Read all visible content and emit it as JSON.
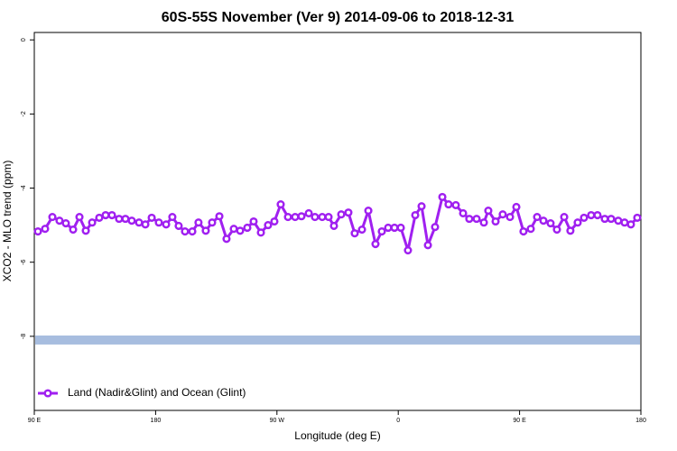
{
  "chart_data": {
    "type": "line",
    "title": "60S-55S November (Ver 9)   2014-09-06 to 2018-12-31",
    "x_label": "Longitude (deg E)",
    "y_label": "XCO2 - MLO trend (ppm)",
    "xlim": [
      90,
      540
    ],
    "ylim": [
      -10,
      0.2
    ],
    "xticks": [
      {
        "value": 90,
        "label": "90 E"
      },
      180,
      {
        "value": 270,
        "label": "90 W"
      },
      {
        "value": 360,
        "label": "0"
      },
      {
        "value": 450,
        "label": "90 E"
      },
      {
        "value": 540,
        "label": "180"
      }
    ],
    "yticks": [
      0,
      -2,
      -4,
      -6,
      -8
    ],
    "legend_position": "bottomleft",
    "reference_band": {
      "value": -8.1,
      "color": "#a7bddf"
    },
    "x": [
      92.7,
      98.0,
      103.4,
      108.7,
      113.4,
      118.8,
      123.5,
      128.2,
      132.9,
      138.2,
      142.9,
      147.6,
      152.9,
      157.6,
      162.3,
      167.7,
      172.4,
      177.1,
      182.4,
      187.8,
      192.4,
      197.1,
      201.8,
      207.2,
      211.8,
      217.2,
      221.9,
      227.3,
      232.6,
      238.0,
      242.7,
      248.0,
      252.7,
      258.1,
      263.4,
      268.1,
      272.8,
      278.2,
      283.5,
      288.2,
      293.6,
      298.2,
      303.6,
      308.3,
      312.3,
      317.7,
      323.0,
      327.7,
      333.1,
      337.8,
      343.1,
      347.8,
      352.5,
      357.2,
      361.9,
      367.2,
      372.6,
      377.3,
      382.0,
      387.3,
      392.7,
      397.3,
      402.7,
      408.1,
      412.7,
      418.1,
      423.5,
      426.8,
      432.2,
      437.5,
      442.9,
      447.6,
      452.9,
      458.3,
      463.0,
      467.7,
      473.0,
      477.7,
      483.1,
      487.7,
      493.1,
      497.8,
      503.1,
      507.8,
      513.2,
      517.9,
      523.2,
      527.9,
      532.6,
      537.3
    ],
    "series": [
      {
        "name": "Land (Nadir&Glint) and Ocean (Glint)",
        "color": "#a020f0",
        "values": [
          -5.17,
          -5.1,
          -4.78,
          -4.88,
          -4.95,
          -5.12,
          -4.78,
          -5.15,
          -4.93,
          -4.8,
          -4.73,
          -4.73,
          -4.83,
          -4.83,
          -4.88,
          -4.93,
          -4.98,
          -4.8,
          -4.93,
          -4.98,
          -4.78,
          -5.02,
          -5.17,
          -5.17,
          -4.93,
          -5.15,
          -4.93,
          -4.76,
          -5.37,
          -5.1,
          -5.15,
          -5.07,
          -4.9,
          -5.2,
          -5.0,
          -4.9,
          -4.44,
          -4.78,
          -4.78,
          -4.76,
          -4.68,
          -4.78,
          -4.78,
          -4.78,
          -5.02,
          -4.71,
          -4.66,
          -5.22,
          -5.12,
          -4.61,
          -5.51,
          -5.17,
          -5.07,
          -5.07,
          -5.07,
          -5.68,
          -4.73,
          -4.49,
          -5.54,
          -5.05,
          -4.24,
          -4.44,
          -4.46,
          -4.68,
          -4.83,
          -4.83,
          -4.93,
          -4.61,
          -4.9,
          -4.71,
          -4.78,
          -4.51,
          -5.17,
          -5.1,
          -4.78,
          -4.88,
          -4.95,
          -5.12,
          -4.78,
          -5.15,
          -4.93,
          -4.8,
          -4.73,
          -4.73,
          -4.83,
          -4.83,
          -4.88,
          -4.93,
          -4.98,
          -4.8
        ]
      }
    ]
  }
}
